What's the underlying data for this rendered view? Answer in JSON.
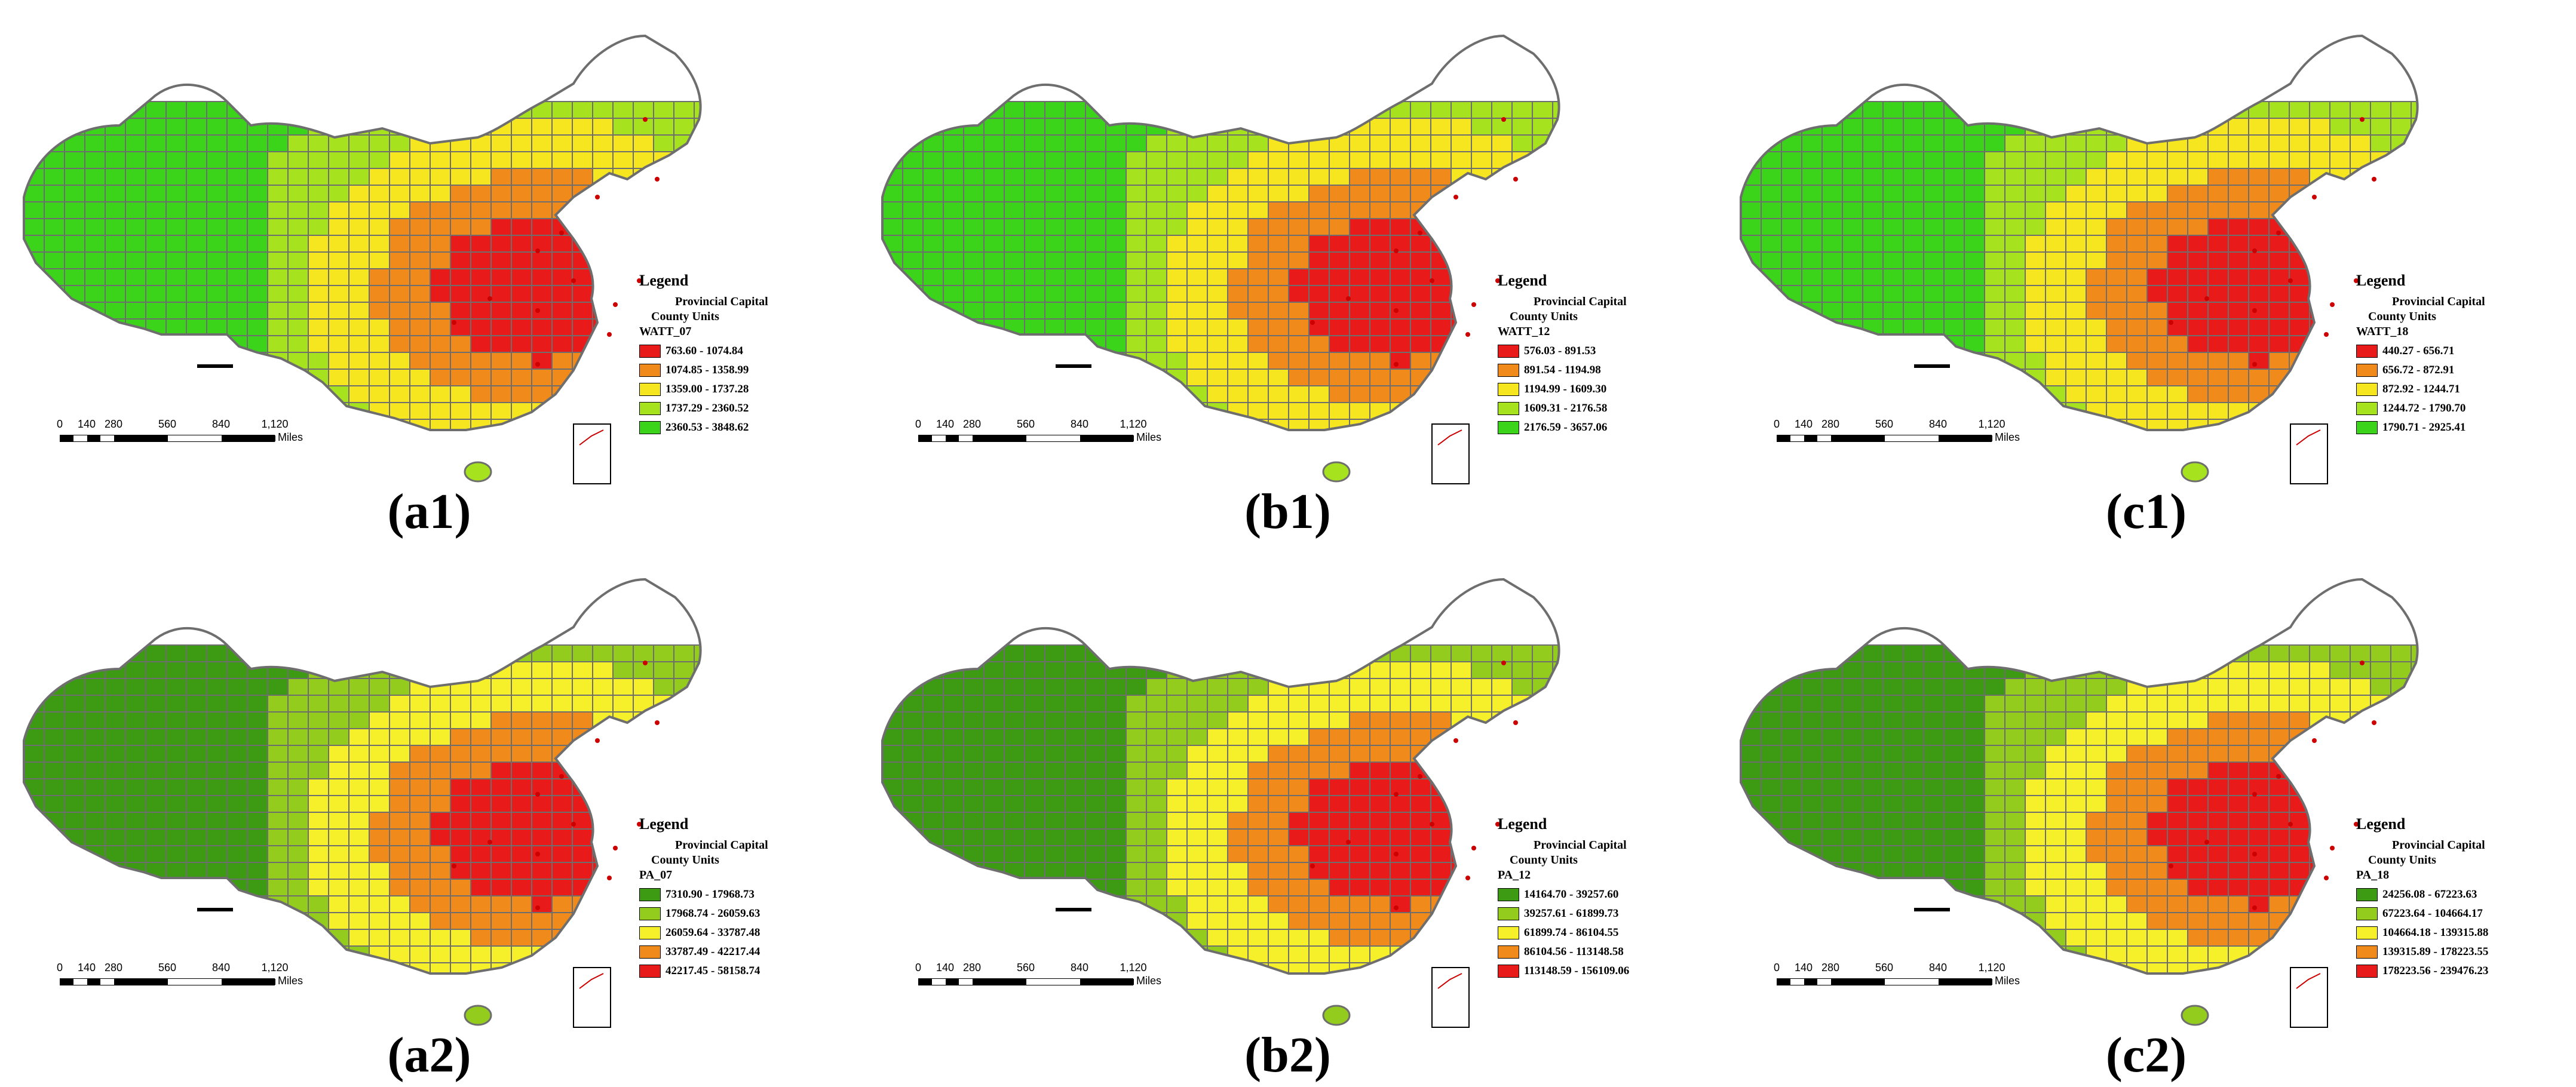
{
  "panels": [
    {
      "id": "a1",
      "caption": "(a1)",
      "field": "WATT_07",
      "classes": [
        {
          "range": "763.60 - 1074.84",
          "color": "#e81a1a"
        },
        {
          "range": "1074.85 - 1358.99",
          "color": "#f08a1a"
        },
        {
          "range": "1359.00 - 1737.28",
          "color": "#f5e61f"
        },
        {
          "range": "1737.29 - 2360.52",
          "color": "#a6e21e"
        },
        {
          "range": "2360.53 - 3848.62",
          "color": "#3bd41b"
        }
      ]
    },
    {
      "id": "b1",
      "caption": "(b1)",
      "field": "WATT_12",
      "classes": [
        {
          "range": "576.03 - 891.53",
          "color": "#e81a1a"
        },
        {
          "range": "891.54 - 1194.98",
          "color": "#f08a1a"
        },
        {
          "range": "1194.99 - 1609.30",
          "color": "#f5e61f"
        },
        {
          "range": "1609.31 - 2176.58",
          "color": "#a6e21e"
        },
        {
          "range": "2176.59 - 3657.06",
          "color": "#3bd41b"
        }
      ]
    },
    {
      "id": "c1",
      "caption": "(c1)",
      "field": "WATT_18",
      "classes": [
        {
          "range": "440.27 - 656.71",
          "color": "#e81a1a"
        },
        {
          "range": "656.72 - 872.91",
          "color": "#f08a1a"
        },
        {
          "range": "872.92 - 1244.71",
          "color": "#f5e61f"
        },
        {
          "range": "1244.72 - 1790.70",
          "color": "#a6e21e"
        },
        {
          "range": "1790.71 - 2925.41",
          "color": "#3bd41b"
        }
      ]
    },
    {
      "id": "a2",
      "caption": "(a2)",
      "field": "PA_07",
      "classes": [
        {
          "range": "7310.90 - 17968.73",
          "color": "#3c9a13"
        },
        {
          "range": "17968.74 - 26059.63",
          "color": "#94cc1e"
        },
        {
          "range": "26059.64 - 33787.48",
          "color": "#f5f02a"
        },
        {
          "range": "33787.49 - 42217.44",
          "color": "#f08a1a"
        },
        {
          "range": "42217.45 - 58158.74",
          "color": "#e81a1a"
        }
      ]
    },
    {
      "id": "b2",
      "caption": "(b2)",
      "field": "PA_12",
      "classes": [
        {
          "range": "14164.70 - 39257.60",
          "color": "#3c9a13"
        },
        {
          "range": "39257.61 - 61899.73",
          "color": "#94cc1e"
        },
        {
          "range": "61899.74 - 86104.55",
          "color": "#f5f02a"
        },
        {
          "range": "86104.56 - 113148.58",
          "color": "#f08a1a"
        },
        {
          "range": "113148.59 - 156109.06",
          "color": "#e81a1a"
        }
      ]
    },
    {
      "id": "c2",
      "caption": "(c2)",
      "field": "PA_18",
      "classes": [
        {
          "range": "24256.08 - 67223.63",
          "color": "#3c9a13"
        },
        {
          "range": "67223.64 - 104664.17",
          "color": "#94cc1e"
        },
        {
          "range": "104664.18 - 139315.88",
          "color": "#f5f02a"
        },
        {
          "range": "139315.89 - 178223.55",
          "color": "#f08a1a"
        },
        {
          "range": "178223.56 - 239476.23",
          "color": "#e81a1a"
        }
      ]
    }
  ],
  "legend": {
    "title": "Legend",
    "capital_label": "Provincial Capital",
    "units_label": "County Units"
  },
  "scale": {
    "ticks": [
      "0",
      "140",
      "280",
      "560",
      "840",
      "1,120"
    ],
    "unit": "Miles"
  },
  "colors": {
    "county_border": "#6e6e6e",
    "capital_point": "#cc0000"
  }
}
